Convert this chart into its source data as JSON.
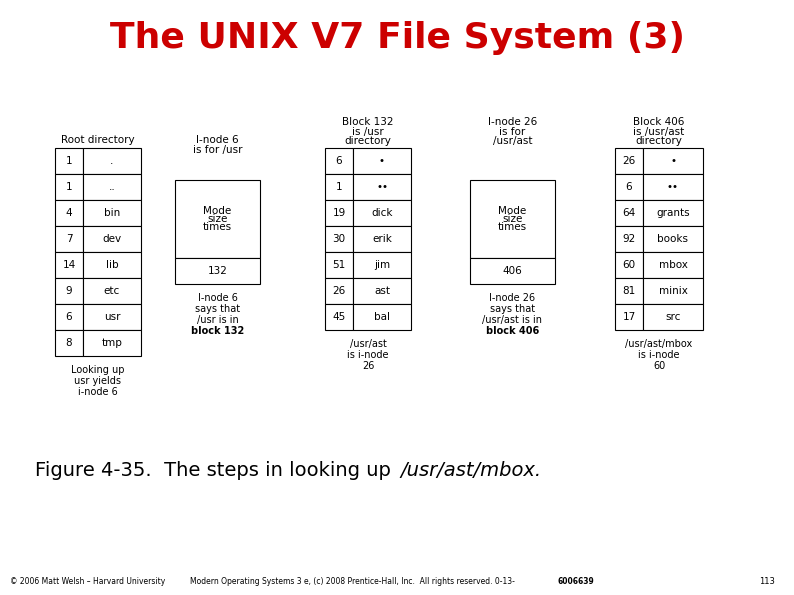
{
  "title": "The UNIX V7 File System (3)",
  "title_color": "#cc0000",
  "title_fontsize": 26,
  "bg_color": "#ffffff",
  "rows1": [
    [
      "1",
      "."
    ],
    [
      "1",
      ".."
    ],
    [
      "4",
      "bin"
    ],
    [
      "7",
      "dev"
    ],
    [
      "14",
      "lib"
    ],
    [
      "9",
      "etc"
    ],
    [
      "6",
      "usr"
    ],
    [
      "8",
      "tmp"
    ]
  ],
  "rows3": [
    [
      "6",
      "•"
    ],
    [
      "1",
      "••"
    ],
    [
      "19",
      "dick"
    ],
    [
      "30",
      "erik"
    ],
    [
      "51",
      "jim"
    ],
    [
      "26",
      "ast"
    ],
    [
      "45",
      "bal"
    ]
  ],
  "rows5": [
    [
      "26",
      "•"
    ],
    [
      "6",
      "••"
    ],
    [
      "64",
      "grants"
    ],
    [
      "92",
      "books"
    ],
    [
      "60",
      "mbox"
    ],
    [
      "81",
      "minix"
    ],
    [
      "17",
      "src"
    ]
  ]
}
